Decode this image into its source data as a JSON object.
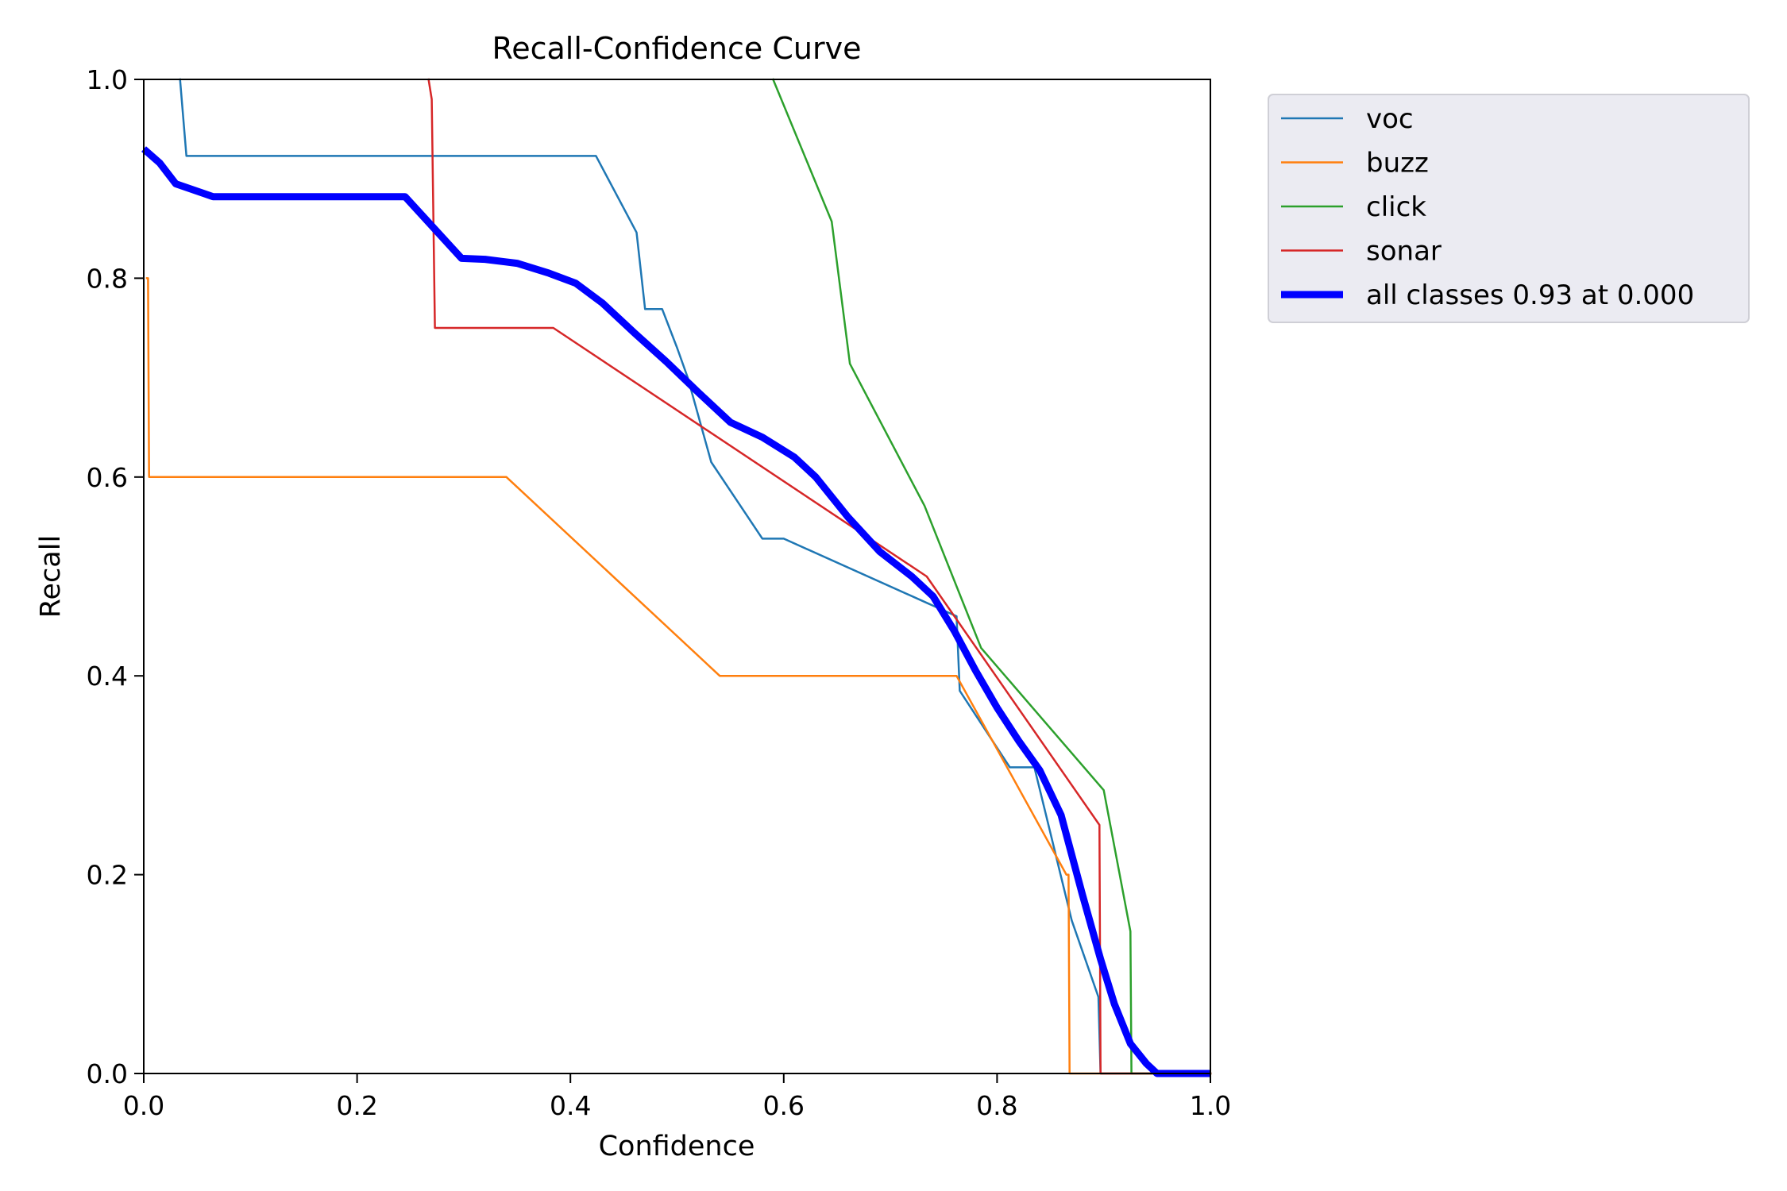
{
  "chart_data": {
    "type": "line",
    "title": "Recall-Confidence Curve",
    "xlabel": "Confidence",
    "ylabel": "Recall",
    "xlim": [
      0.0,
      1.0
    ],
    "ylim": [
      0.0,
      1.0
    ],
    "xticks": [
      "0.0",
      "0.2",
      "0.4",
      "0.6",
      "0.8",
      "1.0"
    ],
    "yticks": [
      "0.0",
      "0.2",
      "0.4",
      "0.6",
      "0.8",
      "1.0"
    ],
    "grid": false,
    "legend_position": "outside-top-right",
    "series": [
      {
        "name": "voc",
        "color": "#1f77b4",
        "x": [
          0.034,
          0.04,
          0.424,
          0.462,
          0.47,
          0.486,
          0.5,
          0.51,
          0.532,
          0.58,
          0.6,
          0.735,
          0.762,
          0.765,
          0.812,
          0.835,
          0.87,
          0.895,
          0.897,
          1.0
        ],
        "y": [
          1.0,
          0.923,
          0.923,
          0.846,
          0.769,
          0.769,
          0.73,
          0.7,
          0.615,
          0.538,
          0.538,
          0.473,
          0.46,
          0.385,
          0.308,
          0.308,
          0.154,
          0.077,
          0.0,
          0.0
        ]
      },
      {
        "name": "buzz",
        "color": "#ff7f0e",
        "x": [
          0.003,
          0.004,
          0.005,
          0.34,
          0.54,
          0.762,
          0.865,
          0.867,
          0.868,
          1.0
        ],
        "y": [
          0.8,
          0.8,
          0.6,
          0.6,
          0.4,
          0.4,
          0.2,
          0.2,
          0.0,
          0.0
        ]
      },
      {
        "name": "click",
        "color": "#2ca02c",
        "x": [
          0.59,
          0.645,
          0.662,
          0.732,
          0.785,
          0.9,
          0.925,
          0.926,
          1.0
        ],
        "y": [
          1.0,
          0.857,
          0.714,
          0.571,
          0.428,
          0.285,
          0.143,
          0.0,
          0.0
        ]
      },
      {
        "name": "sonar",
        "color": "#d62728",
        "x": [
          0.267,
          0.27,
          0.273,
          0.384,
          0.734,
          0.896,
          0.897,
          1.0
        ],
        "y": [
          1.0,
          0.98,
          0.75,
          0.75,
          0.5,
          0.25,
          0.0,
          0.0
        ]
      },
      {
        "name": "all classes 0.93 at 0.000",
        "color": "#0000ff",
        "linewidth": "thick",
        "x": [
          0.0,
          0.015,
          0.03,
          0.065,
          0.1,
          0.2,
          0.245,
          0.298,
          0.32,
          0.35,
          0.38,
          0.405,
          0.43,
          0.46,
          0.49,
          0.52,
          0.55,
          0.58,
          0.61,
          0.63,
          0.66,
          0.69,
          0.72,
          0.74,
          0.76,
          0.78,
          0.8,
          0.82,
          0.84,
          0.86,
          0.88,
          0.897,
          0.91,
          0.925,
          0.94,
          0.95,
          1.0
        ],
        "y": [
          0.93,
          0.916,
          0.895,
          0.882,
          0.882,
          0.882,
          0.882,
          0.82,
          0.819,
          0.815,
          0.805,
          0.795,
          0.775,
          0.745,
          0.716,
          0.685,
          0.655,
          0.64,
          0.62,
          0.6,
          0.56,
          0.525,
          0.5,
          0.48,
          0.445,
          0.405,
          0.368,
          0.335,
          0.305,
          0.26,
          0.18,
          0.115,
          0.07,
          0.03,
          0.01,
          0.0,
          0.0
        ]
      }
    ]
  }
}
